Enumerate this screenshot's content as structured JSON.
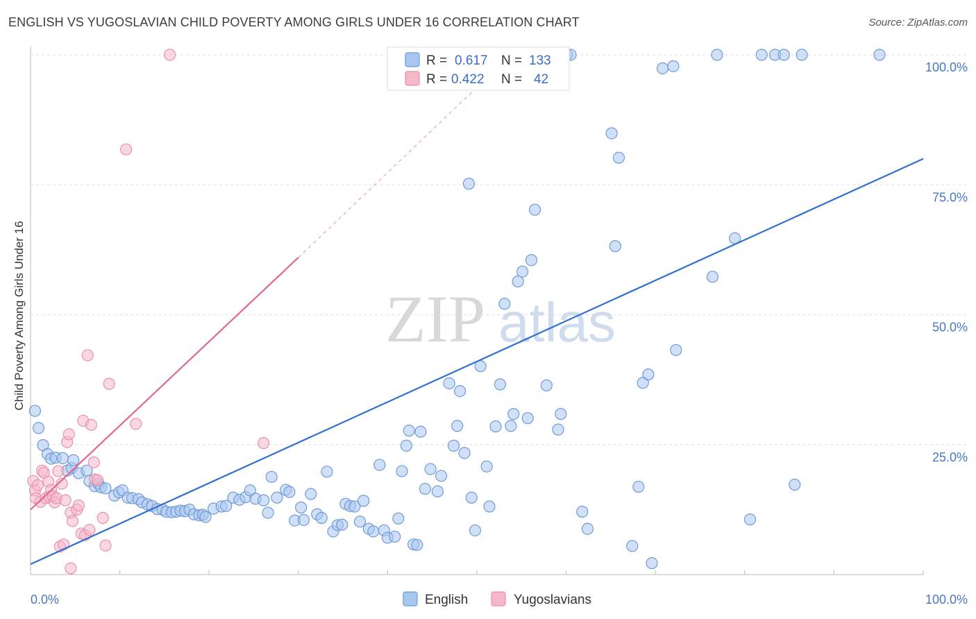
{
  "title": "ENGLISH VS YUGOSLAVIAN CHILD POVERTY AMONG GIRLS UNDER 16 CORRELATION CHART",
  "source": "Source: ZipAtlas.com",
  "watermark": {
    "zip": "ZIP",
    "atlas": "atlas"
  },
  "colors": {
    "english_fill": "#a9c6ee",
    "english_stroke": "#6f9ad8",
    "english_line": "#2f6fce",
    "yugo_fill": "#f5b8cb",
    "yugo_stroke": "#e990ac",
    "yugo_line": "#e06690",
    "tick_text": "#4a78c8",
    "grid": "#dddddd"
  },
  "legend": {
    "rows": [
      {
        "r_label": "R =",
        "r_value": "0.617",
        "n_label": "N =",
        "n_value": "133"
      },
      {
        "r_label": "R =",
        "r_value": "0.422",
        "n_label": "N =",
        "n_value": "42"
      }
    ]
  },
  "bottom_legend": [
    "English",
    "Yugoslavians"
  ],
  "chart_data": {
    "type": "scatter",
    "title": "ENGLISH VS YUGOSLAVIAN CHILD POVERTY AMONG GIRLS UNDER 16 CORRELATION CHART",
    "xlabel": "",
    "ylabel": "Child Poverty Among Girls Under 16",
    "xlim": [
      0,
      100
    ],
    "ylim": [
      0,
      100
    ],
    "x_tick_labels": [
      "0.0%",
      "100.0%"
    ],
    "y_ticks": [
      25,
      50,
      75,
      100
    ],
    "y_tick_labels": [
      "25.0%",
      "50.0%",
      "75.0%",
      "100.0%"
    ],
    "grid": true,
    "legend_placement": "top-center",
    "series": [
      {
        "name": "English",
        "r": 0.617,
        "n": 133,
        "trend": {
          "x0": 0,
          "y0": 2,
          "x1": 100,
          "y1": 80
        },
        "points": [
          [
            0.5,
            31.5
          ],
          [
            0.9,
            28.2
          ],
          [
            1.4,
            24.9
          ],
          [
            1.9,
            23.2
          ],
          [
            2.3,
            22.3
          ],
          [
            2.8,
            22.5
          ],
          [
            3.6,
            22.4
          ],
          [
            4.1,
            20
          ],
          [
            4.6,
            20.5
          ],
          [
            4.8,
            22
          ],
          [
            5.4,
            19.5
          ],
          [
            6.3,
            20
          ],
          [
            6.6,
            18
          ],
          [
            7.2,
            17
          ],
          [
            7.6,
            17.5
          ],
          [
            7.9,
            16.8
          ],
          [
            8.4,
            16.6
          ],
          [
            9.4,
            15.2
          ],
          [
            9.9,
            15.8
          ],
          [
            10.3,
            16.2
          ],
          [
            10.9,
            14.8
          ],
          [
            11.4,
            14.7
          ],
          [
            12.1,
            14.5
          ],
          [
            12.5,
            13.9
          ],
          [
            13.1,
            13.5
          ],
          [
            13.6,
            13.2
          ],
          [
            14.2,
            12.6
          ],
          [
            14.8,
            12.5
          ],
          [
            15.2,
            12.1
          ],
          [
            15.8,
            12
          ],
          [
            16.3,
            12.1
          ],
          [
            16.8,
            12.3
          ],
          [
            17.3,
            12.2
          ],
          [
            17.8,
            12.5
          ],
          [
            18.3,
            11.6
          ],
          [
            18.9,
            11.4
          ],
          [
            19.3,
            11.5
          ],
          [
            19.6,
            11.1
          ],
          [
            20.5,
            12.7
          ],
          [
            21.4,
            13.1
          ],
          [
            21.9,
            13.2
          ],
          [
            22.7,
            14.8
          ],
          [
            23.4,
            14.4
          ],
          [
            24.1,
            14.9
          ],
          [
            24.6,
            16.2
          ],
          [
            25.2,
            14.6
          ],
          [
            26.1,
            14.3
          ],
          [
            26.6,
            11.9
          ],
          [
            27,
            18.8
          ],
          [
            27.6,
            14.8
          ],
          [
            28.6,
            16.3
          ],
          [
            29,
            15.9
          ],
          [
            29.6,
            10.4
          ],
          [
            30.3,
            12.9
          ],
          [
            30.6,
            10.5
          ],
          [
            31.4,
            15.5
          ],
          [
            32.1,
            11.6
          ],
          [
            32.6,
            10.9
          ],
          [
            33.2,
            19.8
          ],
          [
            33.9,
            8.3
          ],
          [
            34.4,
            9.5
          ],
          [
            34.9,
            9.6
          ],
          [
            35.3,
            13.6
          ],
          [
            35.8,
            13.2
          ],
          [
            36.3,
            13.1
          ],
          [
            36.9,
            10.2
          ],
          [
            37.3,
            14.2
          ],
          [
            37.9,
            8.8
          ],
          [
            38.4,
            8.3
          ],
          [
            39.1,
            21.1
          ],
          [
            39.6,
            8.5
          ],
          [
            40,
            7.1
          ],
          [
            40.8,
            7.3
          ],
          [
            41.2,
            10.8
          ],
          [
            41.6,
            19.9
          ],
          [
            42.1,
            24.8
          ],
          [
            42.4,
            27.7
          ],
          [
            42.9,
            5.8
          ],
          [
            43.3,
            5.7
          ],
          [
            43.7,
            27.5
          ],
          [
            44.2,
            16.5
          ],
          [
            44.8,
            20.3
          ],
          [
            45.6,
            16
          ],
          [
            46,
            19
          ],
          [
            46.9,
            36.8
          ],
          [
            47.4,
            24.8
          ],
          [
            47.8,
            28.6
          ],
          [
            48.1,
            35.3
          ],
          [
            48.6,
            23.4
          ],
          [
            49.1,
            75.2
          ],
          [
            49.4,
            14.8
          ],
          [
            49.8,
            8.5
          ],
          [
            50.4,
            40.1
          ],
          [
            51.1,
            20.8
          ],
          [
            51.4,
            13.1
          ],
          [
            52.1,
            28.5
          ],
          [
            52.6,
            36.6
          ],
          [
            53.1,
            52.1
          ],
          [
            53.8,
            28.6
          ],
          [
            54.1,
            30.9
          ],
          [
            54.6,
            56.4
          ],
          [
            55.1,
            58.3
          ],
          [
            55.7,
            30.1
          ],
          [
            56.1,
            60.5
          ],
          [
            56.5,
            70.2
          ],
          [
            57.8,
            36.4
          ],
          [
            59.1,
            27.9
          ],
          [
            59.4,
            30.9
          ],
          [
            60.1,
            100
          ],
          [
            60.5,
            100
          ],
          [
            61.8,
            12.1
          ],
          [
            62.4,
            8.8
          ],
          [
            65.1,
            84.9
          ],
          [
            65.5,
            63.2
          ],
          [
            65.9,
            80.2
          ],
          [
            67.4,
            5.5
          ],
          [
            68.1,
            16.9
          ],
          [
            68.6,
            36.9
          ],
          [
            69.2,
            38.5
          ],
          [
            69.6,
            2.2
          ],
          [
            70.8,
            97.4
          ],
          [
            72,
            97.8
          ],
          [
            72.3,
            43.2
          ],
          [
            76.4,
            57.3
          ],
          [
            76.9,
            100
          ],
          [
            78.9,
            64.7
          ],
          [
            80.6,
            10.6
          ],
          [
            81.9,
            100
          ],
          [
            83.4,
            100
          ],
          [
            84.4,
            100
          ],
          [
            85.6,
            17.3
          ],
          [
            86.4,
            100
          ],
          [
            95.1,
            100
          ]
        ]
      },
      {
        "name": "Yugoslavians",
        "r": 0.422,
        "n": 42,
        "trend": {
          "x0": 0,
          "y0": 12.5,
          "x1": 30,
          "y1": 61
        },
        "trend_extension": {
          "x0": 30,
          "y0": 61,
          "x1": 52,
          "y1": 97
        },
        "points": [
          [
            0.3,
            18
          ],
          [
            0.5,
            16.2
          ],
          [
            0.6,
            14.7
          ],
          [
            0.8,
            17.2
          ],
          [
            1.1,
            14
          ],
          [
            1.3,
            20
          ],
          [
            1.5,
            19.6
          ],
          [
            1.7,
            14.7
          ],
          [
            2,
            17.9
          ],
          [
            2.1,
            15
          ],
          [
            2.3,
            16.3
          ],
          [
            2.5,
            15.1
          ],
          [
            2.7,
            13.9
          ],
          [
            2.9,
            14.7
          ],
          [
            3.1,
            19.9
          ],
          [
            3.3,
            5.4
          ],
          [
            3.5,
            17.5
          ],
          [
            3.7,
            5.8
          ],
          [
            3.9,
            14.3
          ],
          [
            4.1,
            25.5
          ],
          [
            4.3,
            27
          ],
          [
            4.5,
            11.9
          ],
          [
            4.5,
            1.2
          ],
          [
            4.7,
            10.3
          ],
          [
            5.2,
            12.5
          ],
          [
            5.4,
            13.3
          ],
          [
            5.7,
            7.9
          ],
          [
            5.9,
            29.6
          ],
          [
            6.1,
            7.6
          ],
          [
            6.4,
            42.2
          ],
          [
            6.6,
            8.6
          ],
          [
            6.8,
            28.8
          ],
          [
            7.1,
            21.6
          ],
          [
            7.2,
            18.3
          ],
          [
            7.5,
            18.2
          ],
          [
            8.1,
            10.9
          ],
          [
            8.4,
            5.6
          ],
          [
            8.8,
            36.7
          ],
          [
            10.7,
            81.8
          ],
          [
            11.8,
            29
          ],
          [
            15.6,
            100
          ],
          [
            26.1,
            25.3
          ]
        ]
      }
    ]
  }
}
